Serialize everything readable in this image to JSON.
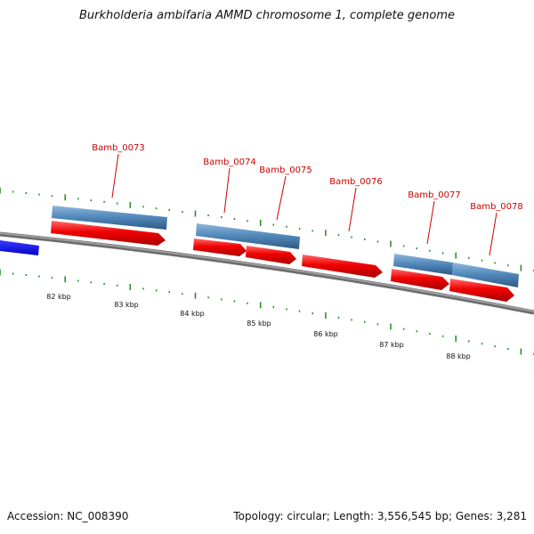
{
  "title": "Burkholderia ambifaria AMMD chromosome 1, complete genome",
  "footer": {
    "accession": "Accession: NC_008390",
    "summary": "Topology: circular; Length: 3,556,545 bp; Genes: 3,281"
  },
  "colors": {
    "backbone": "#7a7a7a",
    "tick": "#1f8a1f",
    "gene_label": "#cc0000",
    "forward_gene": "#e00000",
    "reverse_gene": "#4f86b8",
    "other_feature": "#1010ee"
  },
  "scale_labels": [
    "82 kbp",
    "83 kbp",
    "84 kbp",
    "85 kbp",
    "86 kbp",
    "87 kbp",
    "88 kbp"
  ],
  "genes": [
    {
      "label": "Bamb_0073",
      "strand": "forward"
    },
    {
      "label": "Bamb_0074",
      "strand": "forward"
    },
    {
      "label": "Bamb_0075",
      "strand": "forward"
    },
    {
      "label": "Bamb_0076",
      "strand": "forward"
    },
    {
      "label": "Bamb_0077",
      "strand": "forward"
    },
    {
      "label": "Bamb_0078",
      "strand": "forward"
    }
  ]
}
